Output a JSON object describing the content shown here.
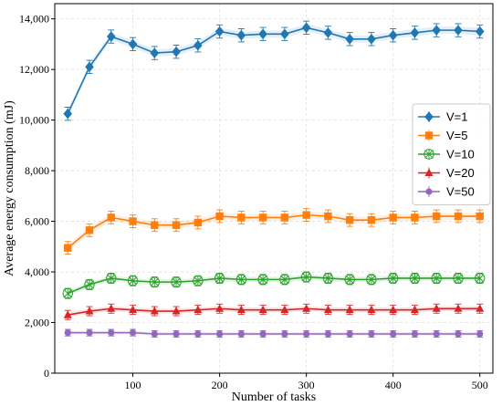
{
  "chart_data": {
    "type": "line",
    "title": "",
    "xlabel": "Number of tasks",
    "ylabel": "Average energy consumption (mJ)",
    "xlim": [
      10,
      515
    ],
    "ylim": [
      0,
      14600
    ],
    "x_ticks": [
      100,
      200,
      300,
      400,
      500
    ],
    "y_ticks": [
      0,
      2000,
      4000,
      6000,
      8000,
      10000,
      12000,
      14000
    ],
    "y_tick_labels": [
      "0",
      "2,000",
      "4,000",
      "6,000",
      "8,000",
      "10,000",
      "12,000",
      "14,000"
    ],
    "grid": true,
    "legend_position": "center-right",
    "x": [
      25,
      50,
      75,
      100,
      125,
      150,
      175,
      200,
      225,
      250,
      275,
      300,
      325,
      350,
      375,
      400,
      425,
      450,
      475,
      500
    ],
    "series": [
      {
        "name": "V=1",
        "color": "#1f77b4",
        "marker": "diamond",
        "values": [
          10250,
          12100,
          13300,
          13000,
          12650,
          12700,
          12950,
          13500,
          13350,
          13400,
          13400,
          13650,
          13450,
          13200,
          13200,
          13350,
          13450,
          13550,
          13550,
          13500
        ],
        "errors": [
          260,
          260,
          260,
          260,
          260,
          260,
          260,
          260,
          260,
          260,
          260,
          260,
          260,
          260,
          260,
          260,
          260,
          260,
          260,
          260
        ]
      },
      {
        "name": "V=5",
        "color": "#ff7f0e",
        "marker": "square",
        "values": [
          4950,
          5650,
          6150,
          6000,
          5850,
          5850,
          5950,
          6200,
          6150,
          6150,
          6150,
          6250,
          6200,
          6050,
          6050,
          6150,
          6150,
          6200,
          6200,
          6200
        ],
        "errors": [
          250,
          250,
          250,
          250,
          250,
          250,
          250,
          250,
          250,
          250,
          250,
          250,
          250,
          250,
          250,
          250,
          250,
          250,
          250,
          250
        ]
      },
      {
        "name": "V=10",
        "color": "#2ca02c",
        "marker": "x-circle",
        "values": [
          3150,
          3500,
          3750,
          3650,
          3600,
          3600,
          3650,
          3750,
          3700,
          3700,
          3700,
          3800,
          3750,
          3700,
          3700,
          3750,
          3750,
          3750,
          3750,
          3750
        ],
        "errors": [
          200,
          200,
          200,
          200,
          200,
          200,
          200,
          200,
          200,
          200,
          200,
          200,
          200,
          200,
          200,
          200,
          200,
          200,
          200,
          200
        ]
      },
      {
        "name": "V=20",
        "color": "#d62728",
        "marker": "triangle",
        "values": [
          2300,
          2450,
          2550,
          2500,
          2450,
          2450,
          2500,
          2550,
          2500,
          2500,
          2500,
          2550,
          2500,
          2500,
          2500,
          2500,
          2500,
          2550,
          2550,
          2550
        ],
        "errors": [
          180,
          180,
          180,
          180,
          180,
          180,
          180,
          180,
          180,
          180,
          180,
          180,
          180,
          180,
          180,
          180,
          180,
          180,
          180,
          180
        ]
      },
      {
        "name": "V=50",
        "color": "#9467bd",
        "marker": "circle",
        "values": [
          1600,
          1600,
          1600,
          1600,
          1550,
          1550,
          1550,
          1550,
          1550,
          1550,
          1550,
          1550,
          1550,
          1550,
          1550,
          1550,
          1550,
          1550,
          1550,
          1550
        ],
        "errors": [
          130,
          130,
          130,
          130,
          130,
          130,
          130,
          130,
          130,
          130,
          130,
          130,
          130,
          130,
          130,
          130,
          130,
          130,
          130,
          130
        ]
      }
    ]
  }
}
